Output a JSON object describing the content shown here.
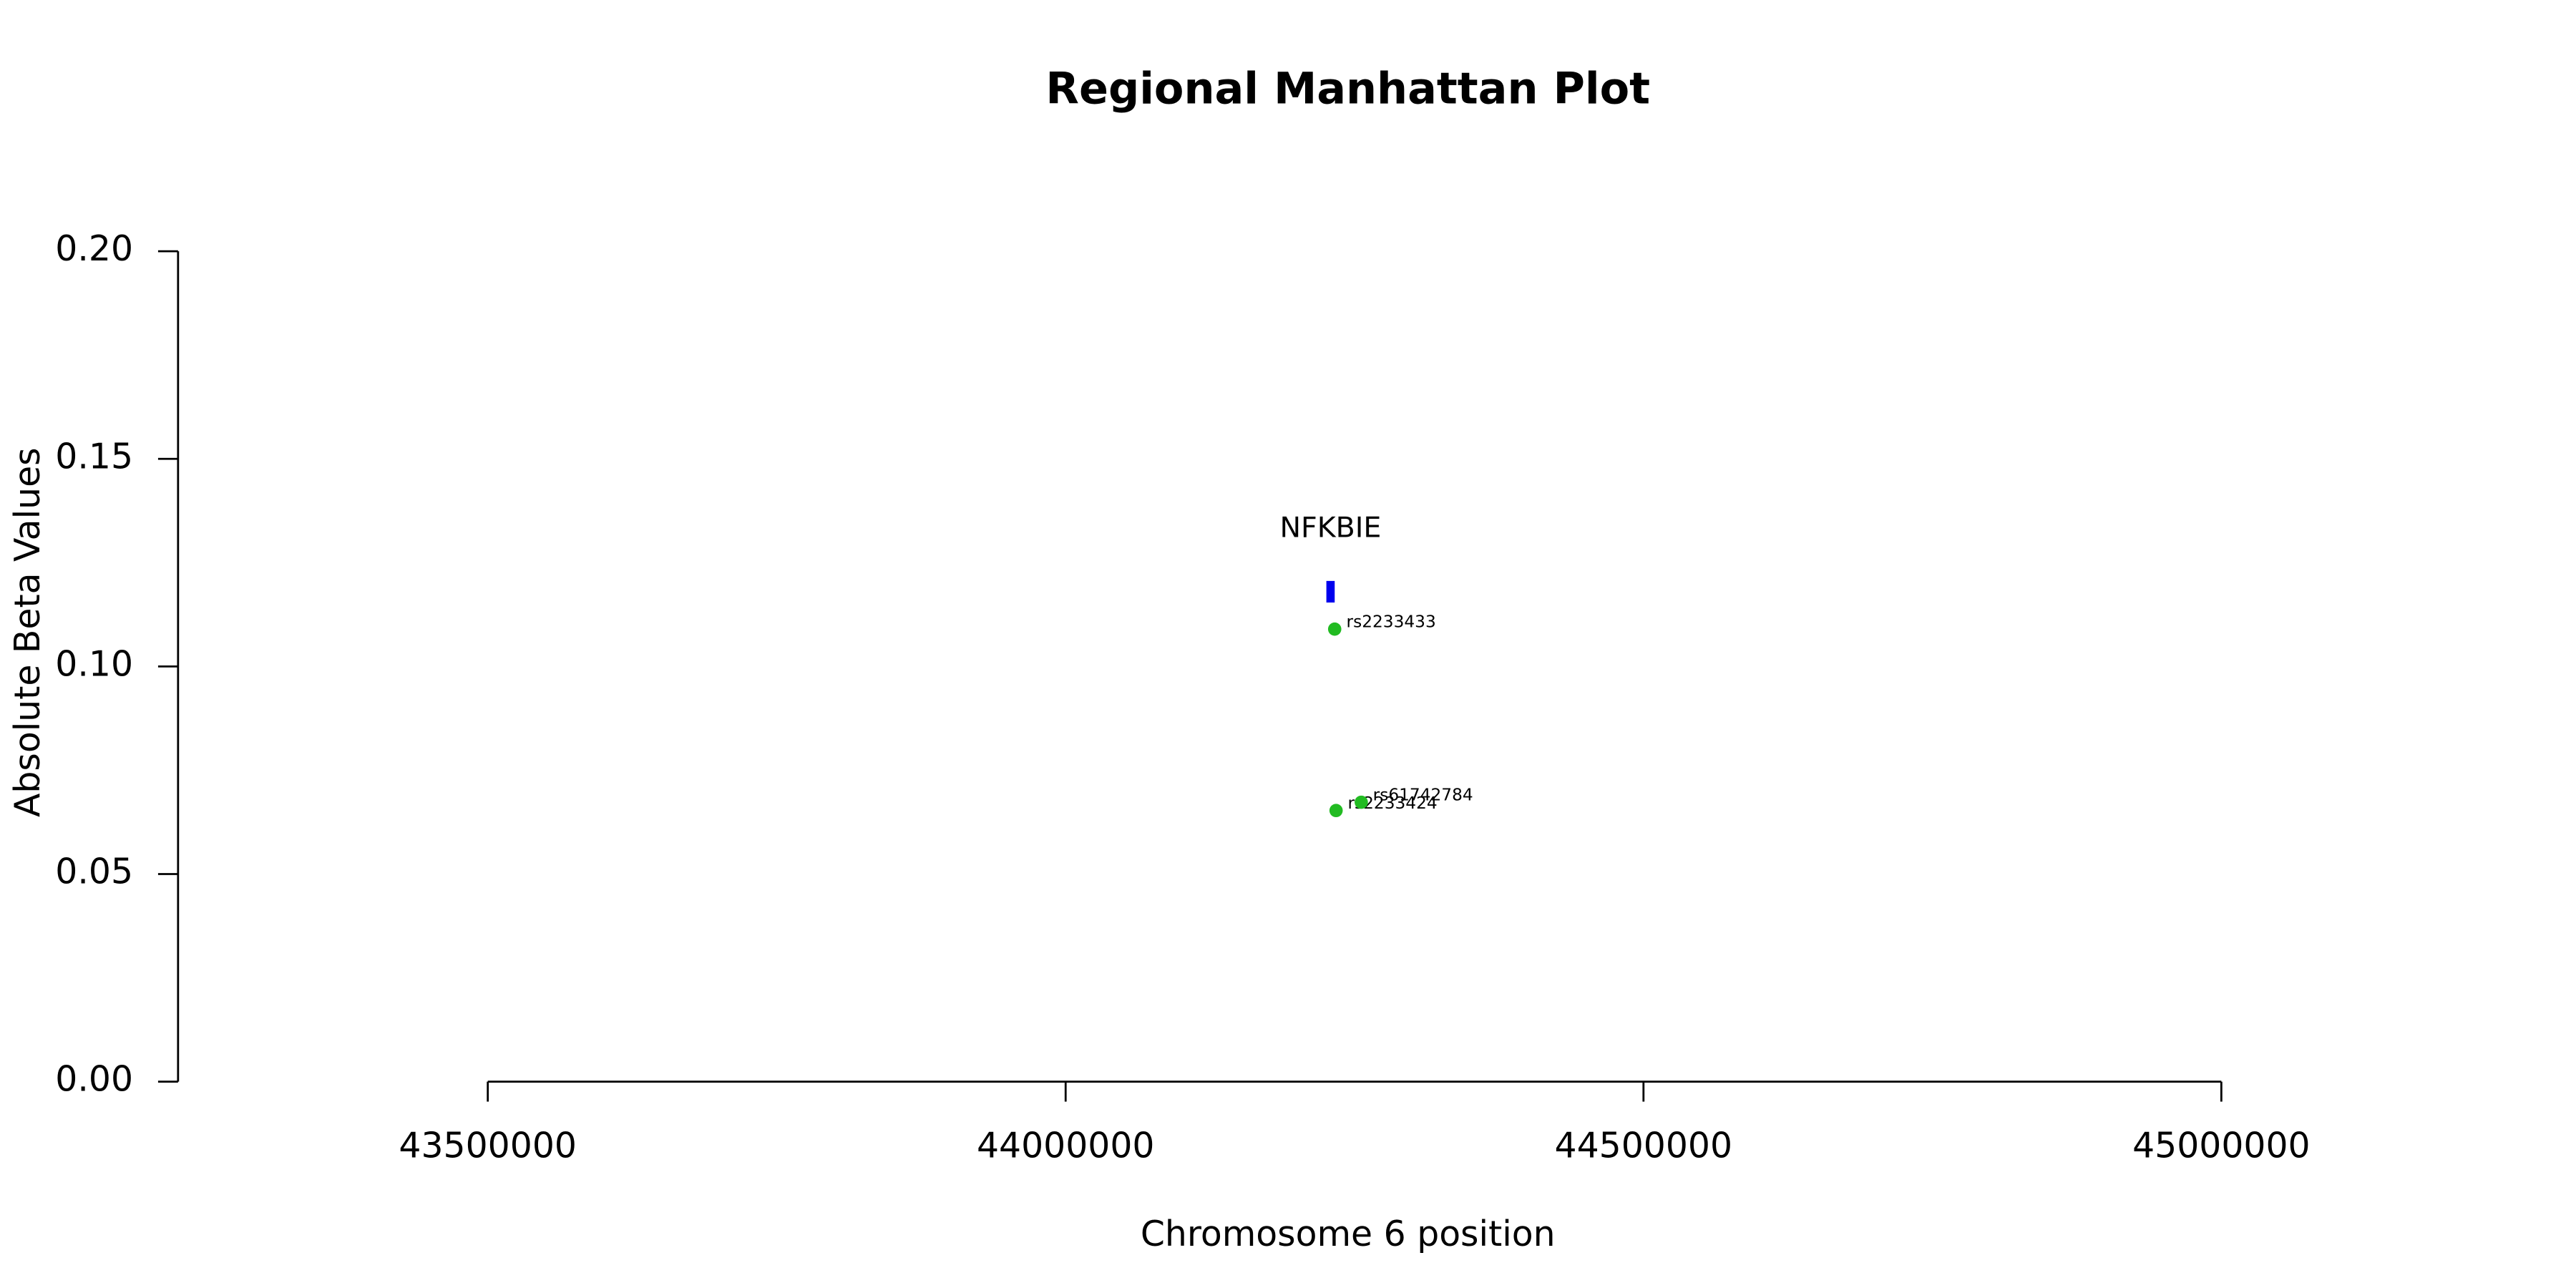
{
  "chart_data": {
    "type": "scatter",
    "title": "Regional Manhattan Plot",
    "x_label": "Chromosome 6 position",
    "y_label": "Absolute Beta Values",
    "x": [
      44232800,
      44234000,
      44255800
    ],
    "values": [
      0.109,
      0.0653,
      0.0673
    ],
    "point_labels": [
      "rs2233433",
      "rs2233424",
      "rs61742784"
    ],
    "color": "#22bb22",
    "genes": [
      {
        "label": "NFKBIE",
        "start": 44225600,
        "end": 44232800,
        "ymin": 0.1154,
        "ymax": 0.1206,
        "color": "#0000ee"
      }
    ],
    "xlim": [
      43232000,
      45268000
    ],
    "ylim": [
      0,
      0.2
    ],
    "xticks": [
      43500000,
      44000000,
      44500000,
      45000000
    ],
    "yticks": [
      {
        "value": 0,
        "label": "0.00"
      },
      {
        "value": 0.05,
        "label": "0.05"
      },
      {
        "value": 0.1,
        "label": "0.10"
      },
      {
        "value": 0.15,
        "label": "0.15"
      },
      {
        "value": 0.2,
        "label": "0.20"
      }
    ]
  }
}
